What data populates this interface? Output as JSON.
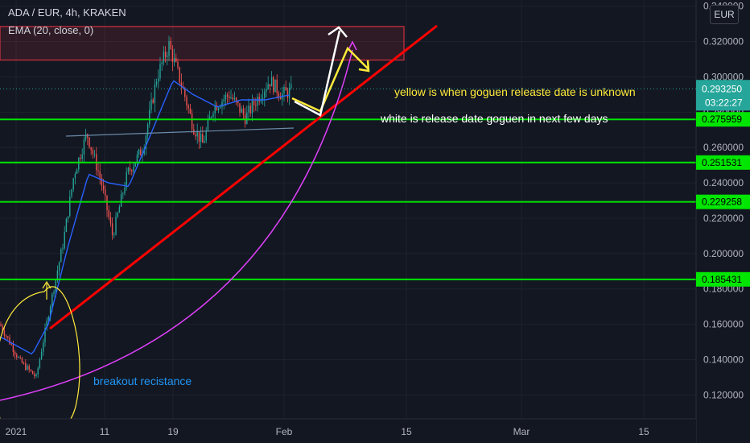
{
  "symbol_title": "ADA / EUR, 4h, KRAKEN",
  "indicator_title": "EMA (20, close, 0)",
  "currency_button": "EUR",
  "chart_data": {
    "type": "candlestick",
    "title": "ADA / EUR, 4h, KRAKEN",
    "x_ticks": [
      "2021",
      "11",
      "19",
      "Feb",
      "15",
      "Mar",
      "15"
    ],
    "y_ticks": [
      "0.120000",
      "0.140000",
      "0.160000",
      "0.180000",
      "0.200000",
      "0.220000",
      "0.240000",
      "0.260000",
      "0.280000",
      "0.300000",
      "0.320000",
      "0.340000"
    ],
    "ylim": [
      0.1065,
      0.3435
    ],
    "last_price": "0.293250",
    "countdown": "03:22:27",
    "horizontal_levels": [
      "0.275959",
      "0.251531",
      "0.229258",
      "0.185431"
    ],
    "resistance_zone": [
      0.3095,
      0.3285
    ],
    "price_path": [
      [
        0,
        0.16
      ],
      [
        25,
        0.139
      ],
      [
        45,
        0.13
      ],
      [
        62,
        0.17
      ],
      [
        78,
        0.205
      ],
      [
        92,
        0.245
      ],
      [
        108,
        0.268
      ],
      [
        125,
        0.242
      ],
      [
        140,
        0.21
      ],
      [
        158,
        0.245
      ],
      [
        178,
        0.26
      ],
      [
        195,
        0.3
      ],
      [
        210,
        0.318
      ],
      [
        228,
        0.292
      ],
      [
        240,
        0.272
      ],
      [
        252,
        0.262
      ],
      [
        265,
        0.283
      ],
      [
        285,
        0.29
      ],
      [
        305,
        0.277
      ],
      [
        320,
        0.288
      ],
      [
        335,
        0.298
      ],
      [
        350,
        0.29
      ],
      [
        362,
        0.292
      ]
    ],
    "ema_path": [
      [
        0,
        0.153
      ],
      [
        40,
        0.143
      ],
      [
        60,
        0.16
      ],
      [
        85,
        0.205
      ],
      [
        110,
        0.245
      ],
      [
        135,
        0.24
      ],
      [
        160,
        0.238
      ],
      [
        185,
        0.265
      ],
      [
        215,
        0.298
      ],
      [
        240,
        0.29
      ],
      [
        270,
        0.283
      ],
      [
        300,
        0.287
      ],
      [
        330,
        0.287
      ],
      [
        362,
        0.29
      ]
    ],
    "annotations": {
      "yellow_note": "yellow is when goguen releaste date is unknown",
      "white_note": "white is release date goguen in next few days",
      "breakout_note": "breakout recistance"
    },
    "colors": {
      "background": "#131722",
      "candle_up": "#26a69a",
      "candle_down": "#ef5350",
      "ema": "#2962ff",
      "levels": "#00e600",
      "trendline": "#ff0000",
      "curve": "#e040fb",
      "yellow_notes": "#ffeb3b",
      "white_notes": "#ffffff",
      "breakout_text": "#2196f3",
      "last_price_label": "#26a69a"
    }
  }
}
